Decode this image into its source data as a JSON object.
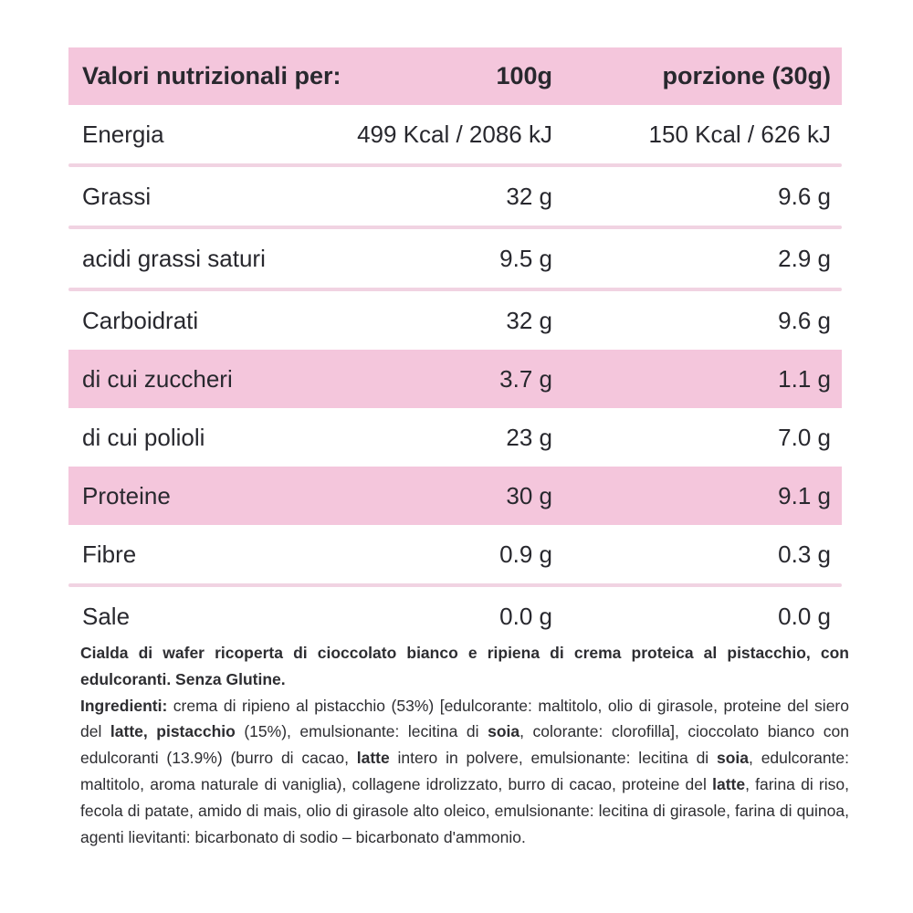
{
  "colors": {
    "header_pink": "#f4c6dc",
    "highlight_pink": "#f4c6dc",
    "divider_pink": "#f1d3e2",
    "text_dark": "#28282e"
  },
  "table": {
    "header": {
      "label": "Valori nutrizionali per:",
      "col_100g": "100g",
      "col_portion": "porzione (30g)"
    },
    "rows": [
      {
        "label": "Energia",
        "per_100g": "499 Kcal / 2086 kJ",
        "per_portion": "150 Kcal / 626 kJ"
      },
      {
        "label": "Grassi",
        "per_100g": "32 g",
        "per_portion": "9.6 g"
      },
      {
        "label": "acidi grassi saturi",
        "per_100g": "9.5 g",
        "per_portion": "2.9 g"
      },
      {
        "label": "Carboidrati",
        "per_100g": "32 g",
        "per_portion": "9.6 g"
      },
      {
        "label": "di cui zuccheri",
        "per_100g": "3.7 g",
        "per_portion": "1.1 g"
      },
      {
        "label": "di cui polioli",
        "per_100g": "23 g",
        "per_portion": "7.0 g"
      },
      {
        "label": "Proteine",
        "per_100g": "30 g",
        "per_portion": "9.1 g"
      },
      {
        "label": "Fibre",
        "per_100g": "0.9 g",
        "per_portion": "0.3 g"
      },
      {
        "label": "Sale",
        "per_100g": "0.0 g",
        "per_portion": "0.0 g"
      }
    ]
  },
  "footer": {
    "description": "Cialda di wafer ricoperta di cioccolato bianco e ripiena di crema proteica al pistacchio, con edulcoranti. Senza Glutine.",
    "ingredients_segments": [
      {
        "text": "Ingredienti:",
        "bold": true
      },
      {
        "text": " crema di ripieno al pistacchio (53%) [edulcorante: maltitolo, olio di girasole, proteine del siero del ",
        "bold": false
      },
      {
        "text": "latte, pistacchio",
        "bold": true
      },
      {
        "text": " (15%), emulsionante: lecitina di ",
        "bold": false
      },
      {
        "text": "soia",
        "bold": true
      },
      {
        "text": ", colorante: clorofilla], cioccolato bianco con edulcoranti (13.9%) (burro di cacao, ",
        "bold": false
      },
      {
        "text": "latte",
        "bold": true
      },
      {
        "text": " intero in polvere, emulsionante: lecitina di ",
        "bold": false
      },
      {
        "text": "soia",
        "bold": true
      },
      {
        "text": ", edulcorante: maltitolo, aroma naturale di vaniglia), collagene idrolizzato, burro di cacao, proteine del ",
        "bold": false
      },
      {
        "text": "latte",
        "bold": true
      },
      {
        "text": ", farina di riso, fecola di patate, amido di mais, olio di girasole alto oleico, emulsionante: lecitina di girasole, farina di quinoa, agenti lievitanti: bicarbonato di sodio – bicarbonato d'ammonio.",
        "bold": false
      }
    ]
  }
}
